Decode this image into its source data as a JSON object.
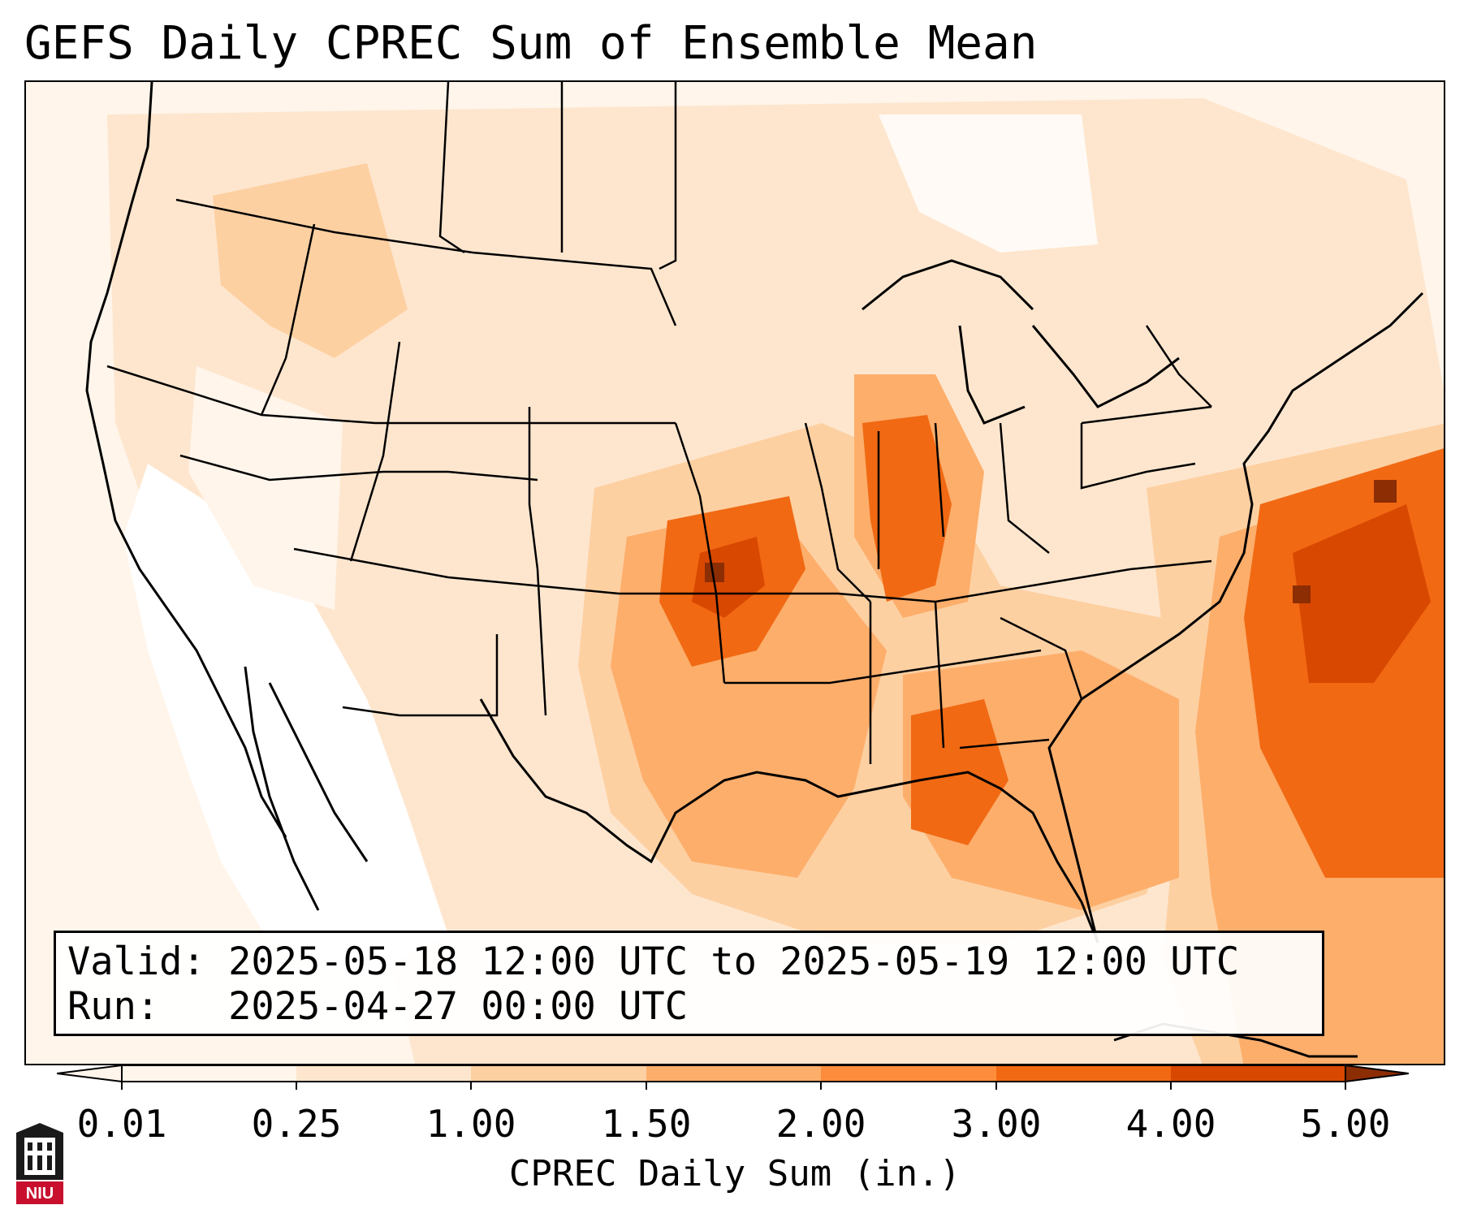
{
  "title": "GEFS Daily CPREC Sum of Ensemble Mean",
  "info": {
    "valid_label": "Valid:",
    "valid_value": "2025-05-18 12:00 UTC to 2025-05-19 12:00 UTC",
    "run_label": "Run:",
    "run_value": "2025-04-27 00:00 UTC"
  },
  "colorbar": {
    "label": "CPREC Daily Sum (in.)",
    "ticks": [
      "0.01",
      "0.25",
      "1.00",
      "1.50",
      "2.00",
      "3.00",
      "4.00",
      "5.00"
    ],
    "colors": [
      "#fff5eb",
      "#fee6ce",
      "#fdd0a2",
      "#fdae6b",
      "#fd8d3c",
      "#f16913",
      "#d94801",
      "#8c2d04"
    ],
    "extend": "both"
  },
  "logo": {
    "text": "NIU",
    "icon": "university-building-icon"
  },
  "map": {
    "projection": "Lambert conformal, CONUS",
    "colors": {
      "coast": "#000000",
      "state_line": "#000000",
      "light": "#fee6ce",
      "lighter": "#fff5eb",
      "mid": "#fdd0a2",
      "orange": "#fdae6b",
      "dark_orange": "#f16913",
      "deep": "#d94801",
      "darkest": "#8c2d04"
    }
  }
}
